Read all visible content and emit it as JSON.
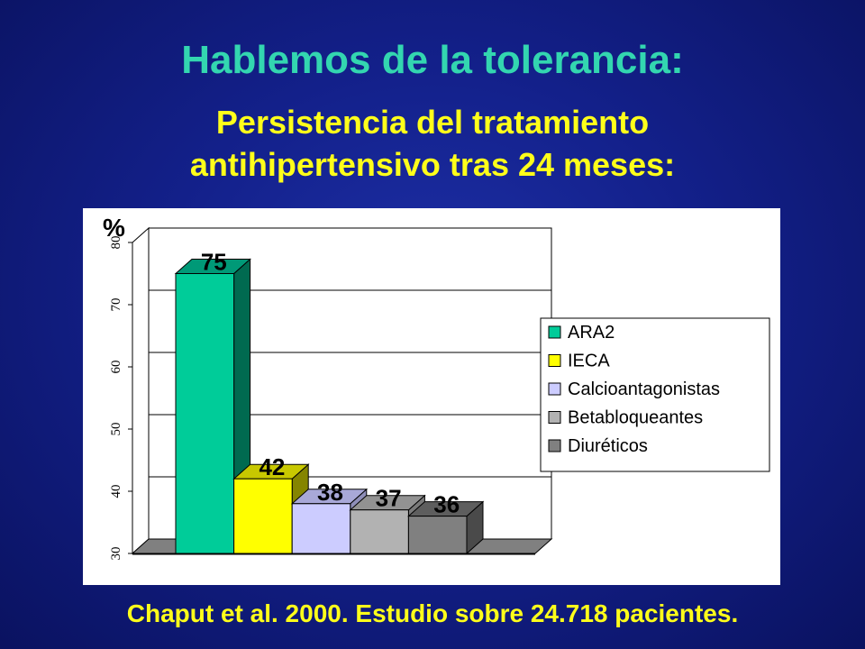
{
  "title": "Hablemos de la tolerancia:",
  "subtitle_line1": "Persistencia del tratamiento",
  "subtitle_line2": "antihipertensivo tras 24 meses:",
  "footer": "Chaput et al. 2000.  Estudio sobre 24.718 pacientes.",
  "chart_data": {
    "type": "bar",
    "categories": [
      "ARA2",
      "IECA",
      "Calcioantagonistas",
      "Betabloqueantes",
      "Diuréticos"
    ],
    "values": [
      75,
      42,
      38,
      37,
      36
    ],
    "data_labels": [
      "75",
      "42",
      "38",
      "37",
      "36"
    ],
    "colors": [
      "#00cc99",
      "#ffff00",
      "#ccccff",
      "#b2b2b2",
      "#808080"
    ],
    "side_colors": [
      "#006a50",
      "#858500",
      "#8e8eb8",
      "#7a7a7a",
      "#4a4a4a"
    ],
    "top_colors": [
      "#009977",
      "#c8c800",
      "#a8a8d8",
      "#929292",
      "#5e5e5e"
    ],
    "ylabel": "%",
    "ylim": [
      30,
      80
    ],
    "yticks": [
      "30",
      "40",
      "50",
      "60",
      "70",
      "80"
    ],
    "grid": true,
    "legend_position": "right"
  }
}
